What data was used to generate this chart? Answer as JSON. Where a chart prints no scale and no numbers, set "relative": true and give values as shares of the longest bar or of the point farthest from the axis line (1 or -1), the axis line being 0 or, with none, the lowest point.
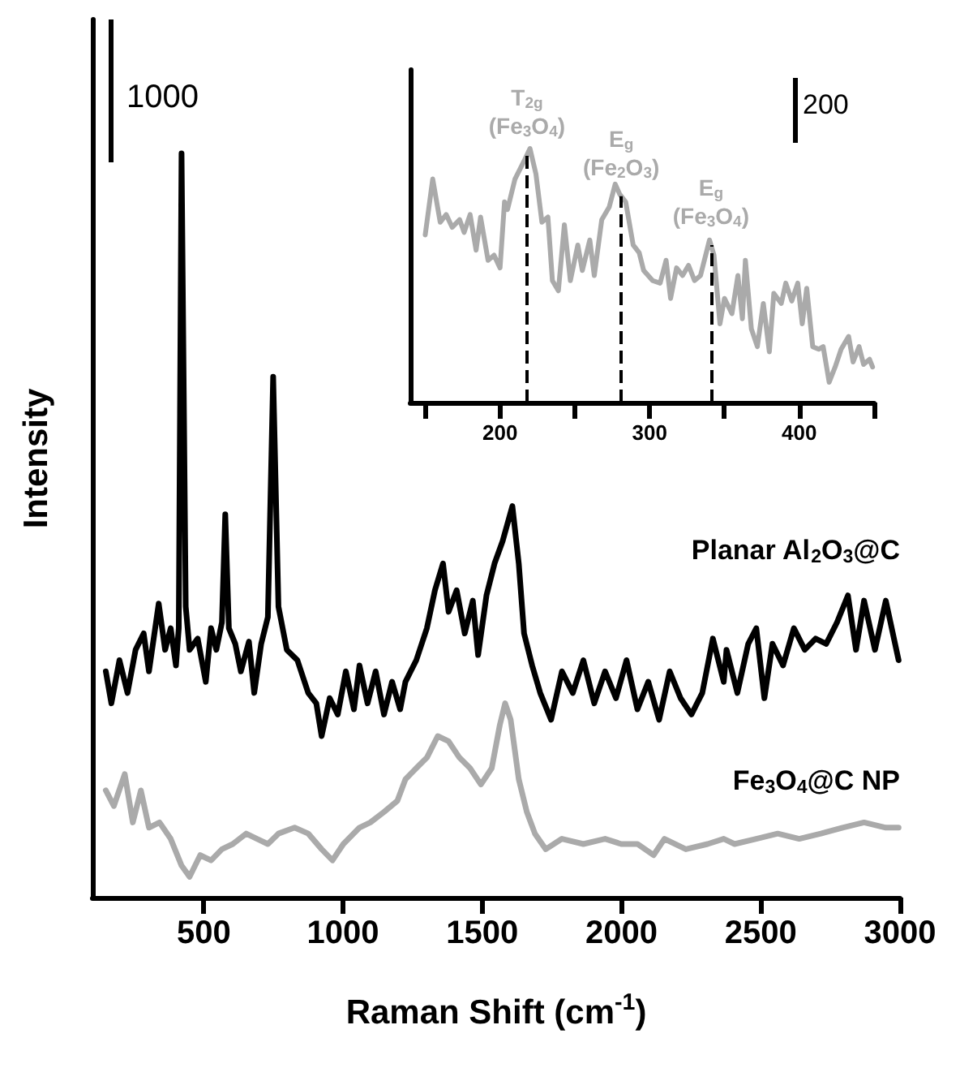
{
  "chart_data": [
    {
      "type": "line",
      "xlabel": "Raman Shift (cm$^{-1}$)",
      "ylabel": "Intensity",
      "relative": true,
      "marker": "none",
      "xlim": [
        100,
        3000
      ],
      "xticks": [
        500,
        1000,
        1500,
        2000,
        2500,
        3000
      ],
      "annotations": [
        "1000"
      ],
      "series": [
        {
          "name": "Planar Al$_{2}$O$_{3}$@C",
          "color": "#000000",
          "x": [
            148,
            168,
            197,
            226,
            255,
            284,
            303,
            338,
            361,
            381,
            400,
            410,
            420,
            435,
            449,
            478,
            507,
            526,
            545,
            565,
            577,
            590,
            613,
            633,
            662,
            681,
            706,
            730,
            749,
            768,
            798,
            836,
            875,
            904,
            923,
            952,
            981,
            1010,
            1039,
            1059,
            1088,
            1117,
            1147,
            1176,
            1205,
            1224,
            1263,
            1301,
            1330,
            1359,
            1379,
            1408,
            1437,
            1466,
            1485,
            1515,
            1544,
            1573,
            1608,
            1631,
            1650,
            1679,
            1708,
            1747,
            1786,
            1825,
            1863,
            1902,
            1941,
            1980,
            2018,
            2057,
            2096,
            2135,
            2173,
            2212,
            2251,
            2290,
            2328,
            2367,
            2377,
            2416,
            2455,
            2484,
            2513,
            2542,
            2580,
            2619,
            2658,
            2697,
            2735,
            2774,
            2813,
            2842,
            2871,
            2910,
            2949,
            2995
          ],
          "values": [
            0.304,
            0.261,
            0.319,
            0.275,
            0.333,
            0.355,
            0.304,
            0.395,
            0.333,
            0.362,
            0.312,
            0.362,
            1.0,
            0.391,
            0.333,
            0.348,
            0.29,
            0.362,
            0.333,
            0.37,
            0.515,
            0.362,
            0.341,
            0.304,
            0.344,
            0.275,
            0.341,
            0.377,
            0.7,
            0.391,
            0.333,
            0.319,
            0.275,
            0.261,
            0.217,
            0.268,
            0.246,
            0.304,
            0.253,
            0.312,
            0.261,
            0.304,
            0.246,
            0.29,
            0.253,
            0.29,
            0.319,
            0.362,
            0.413,
            0.449,
            0.384,
            0.413,
            0.355,
            0.399,
            0.326,
            0.406,
            0.449,
            0.479,
            0.526,
            0.449,
            0.355,
            0.312,
            0.275,
            0.239,
            0.304,
            0.275,
            0.319,
            0.261,
            0.304,
            0.268,
            0.319,
            0.253,
            0.29,
            0.239,
            0.304,
            0.268,
            0.246,
            0.275,
            0.348,
            0.29,
            0.333,
            0.275,
            0.341,
            0.362,
            0.268,
            0.341,
            0.312,
            0.362,
            0.333,
            0.348,
            0.341,
            0.37,
            0.406,
            0.333,
            0.399,
            0.333,
            0.399,
            0.319
          ]
        },
        {
          "name": "Fe$_{3}$O$_{4}$@C NP",
          "color": "#aaaaaa",
          "x": [
            148,
            177,
            216,
            245,
            274,
            303,
            341,
            381,
            420,
            449,
            487,
            526,
            565,
            604,
            652,
            691,
            730,
            768,
            826,
            875,
            923,
            962,
            1001,
            1059,
            1098,
            1147,
            1195,
            1224,
            1263,
            1301,
            1340,
            1379,
            1418,
            1456,
            1495,
            1534,
            1563,
            1582,
            1602,
            1631,
            1660,
            1689,
            1728,
            1786,
            1863,
            1941,
            1999,
            2057,
            2115,
            2154,
            2231,
            2309,
            2367,
            2406,
            2484,
            2561,
            2638,
            2716,
            2794,
            2871,
            2949,
            2995
          ],
          "values": [
            0.144,
            0.123,
            0.166,
            0.101,
            0.144,
            0.094,
            0.101,
            0.079,
            0.043,
            0.028,
            0.057,
            0.05,
            0.065,
            0.072,
            0.086,
            0.079,
            0.072,
            0.086,
            0.094,
            0.086,
            0.065,
            0.05,
            0.072,
            0.094,
            0.101,
            0.115,
            0.13,
            0.159,
            0.174,
            0.188,
            0.217,
            0.21,
            0.188,
            0.174,
            0.152,
            0.174,
            0.232,
            0.261,
            0.239,
            0.159,
            0.115,
            0.086,
            0.065,
            0.079,
            0.072,
            0.079,
            0.072,
            0.072,
            0.057,
            0.079,
            0.065,
            0.072,
            0.079,
            0.072,
            0.079,
            0.086,
            0.079,
            0.086,
            0.094,
            0.101,
            0.094,
            0.094
          ]
        }
      ]
    },
    {
      "type": "line",
      "relative": true,
      "marker": "none",
      "xlim": [
        140,
        450
      ],
      "xticks": [
        {
          "value": 150,
          "label": null
        },
        200,
        {
          "value": 250,
          "label": null
        },
        300,
        {
          "value": 350,
          "label": null
        },
        400,
        {
          "value": 450,
          "label": null
        }
      ],
      "annotations": [
        "200"
      ],
      "ref_lines": [
        {
          "axis": "x",
          "value": 218,
          "label": "T$_{2g}$\n(Fe$_{3}$O$_{4}$)",
          "color": "#000000",
          "line_style": "dashed"
        },
        {
          "axis": "x",
          "value": 281,
          "label": "E$_{g}$\n(Fe$_{2}$O$_{3}$)",
          "color": "#000000",
          "line_style": "dashed"
        },
        {
          "axis": "x",
          "value": 341,
          "label": "E$_{g}$\n(Fe$_{3}$O$_{4}$)",
          "color": "#000000",
          "line_style": "dashed"
        }
      ],
      "series": [
        {
          "color": "#aaaaaa",
          "x": [
            150,
            155,
            160,
            164,
            168,
            173,
            176,
            180,
            184,
            187,
            192,
            196,
            200,
            203,
            205,
            210,
            216,
            220,
            224,
            228,
            232,
            235,
            239,
            243,
            247,
            252,
            255,
            260,
            263,
            268,
            273,
            277,
            280,
            284,
            289,
            293,
            296,
            302,
            307,
            311,
            314,
            318,
            322,
            326,
            330,
            334,
            340,
            343,
            347,
            350,
            355,
            359,
            362,
            364,
            368,
            372,
            376,
            380,
            383,
            388,
            391,
            395,
            399,
            402,
            405,
            409,
            413,
            416,
            420,
            424,
            428,
            433,
            436,
            440,
            443,
            447,
            449
          ],
          "values": [
            0.66,
            0.88,
            0.71,
            0.74,
            0.69,
            0.72,
            0.67,
            0.74,
            0.6,
            0.73,
            0.56,
            0.58,
            0.53,
            0.79,
            0.76,
            0.88,
            0.95,
            1.0,
            0.9,
            0.71,
            0.73,
            0.48,
            0.44,
            0.7,
            0.48,
            0.62,
            0.52,
            0.64,
            0.5,
            0.72,
            0.77,
            0.86,
            0.82,
            0.79,
            0.62,
            0.59,
            0.52,
            0.48,
            0.47,
            0.56,
            0.41,
            0.53,
            0.5,
            0.54,
            0.48,
            0.5,
            0.64,
            0.58,
            0.31,
            0.41,
            0.35,
            0.5,
            0.33,
            0.56,
            0.29,
            0.22,
            0.39,
            0.2,
            0.43,
            0.39,
            0.47,
            0.4,
            0.47,
            0.31,
            0.45,
            0.22,
            0.21,
            0.22,
            0.08,
            0.14,
            0.21,
            0.26,
            0.16,
            0.22,
            0.15,
            0.17,
            0.14
          ]
        }
      ]
    }
  ]
}
